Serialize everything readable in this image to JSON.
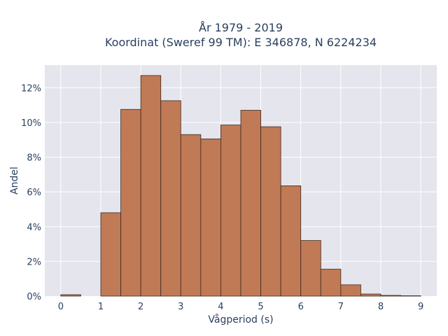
{
  "chart_data": {
    "type": "bar",
    "title_line1": "År 1979 - 2019",
    "title_line2": "Koordinat (Sweref 99 TM): E 346878, N 6224234",
    "xlabel": "Vågperiod (s)",
    "ylabel": "Andel",
    "bin_width": 0.5,
    "bins": [
      {
        "start": 0.0,
        "value": 0.08
      },
      {
        "start": 0.5,
        "value": 0.0
      },
      {
        "start": 1.0,
        "value": 4.8
      },
      {
        "start": 1.5,
        "value": 10.75
      },
      {
        "start": 2.0,
        "value": 12.7
      },
      {
        "start": 2.5,
        "value": 11.25
      },
      {
        "start": 3.0,
        "value": 9.3
      },
      {
        "start": 3.5,
        "value": 9.05
      },
      {
        "start": 4.0,
        "value": 9.85
      },
      {
        "start": 4.5,
        "value": 10.7
      },
      {
        "start": 5.0,
        "value": 9.75
      },
      {
        "start": 5.5,
        "value": 6.35
      },
      {
        "start": 6.0,
        "value": 3.2
      },
      {
        "start": 6.5,
        "value": 1.55
      },
      {
        "start": 7.0,
        "value": 0.65
      },
      {
        "start": 7.5,
        "value": 0.12
      },
      {
        "start": 8.0,
        "value": 0.04
      },
      {
        "start": 8.5,
        "value": 0.02
      }
    ],
    "x_ticks": [
      "0",
      "1",
      "2",
      "3",
      "4",
      "5",
      "6",
      "7",
      "8",
      "9"
    ],
    "x_tick_values": [
      0,
      1,
      2,
      3,
      4,
      5,
      6,
      7,
      8,
      9
    ],
    "y_ticks": [
      "0%",
      "2%",
      "4%",
      "6%",
      "8%",
      "10%",
      "12%"
    ],
    "y_tick_values": [
      0,
      2,
      4,
      6,
      8,
      10,
      12
    ],
    "xlim": [
      -0.4,
      9.4
    ],
    "ylim": [
      0,
      13.3
    ],
    "grid": true,
    "bar_color": "#c07a55",
    "bar_edge_color": "#3d2a1e",
    "plot_bg": "#e5e5ee"
  }
}
